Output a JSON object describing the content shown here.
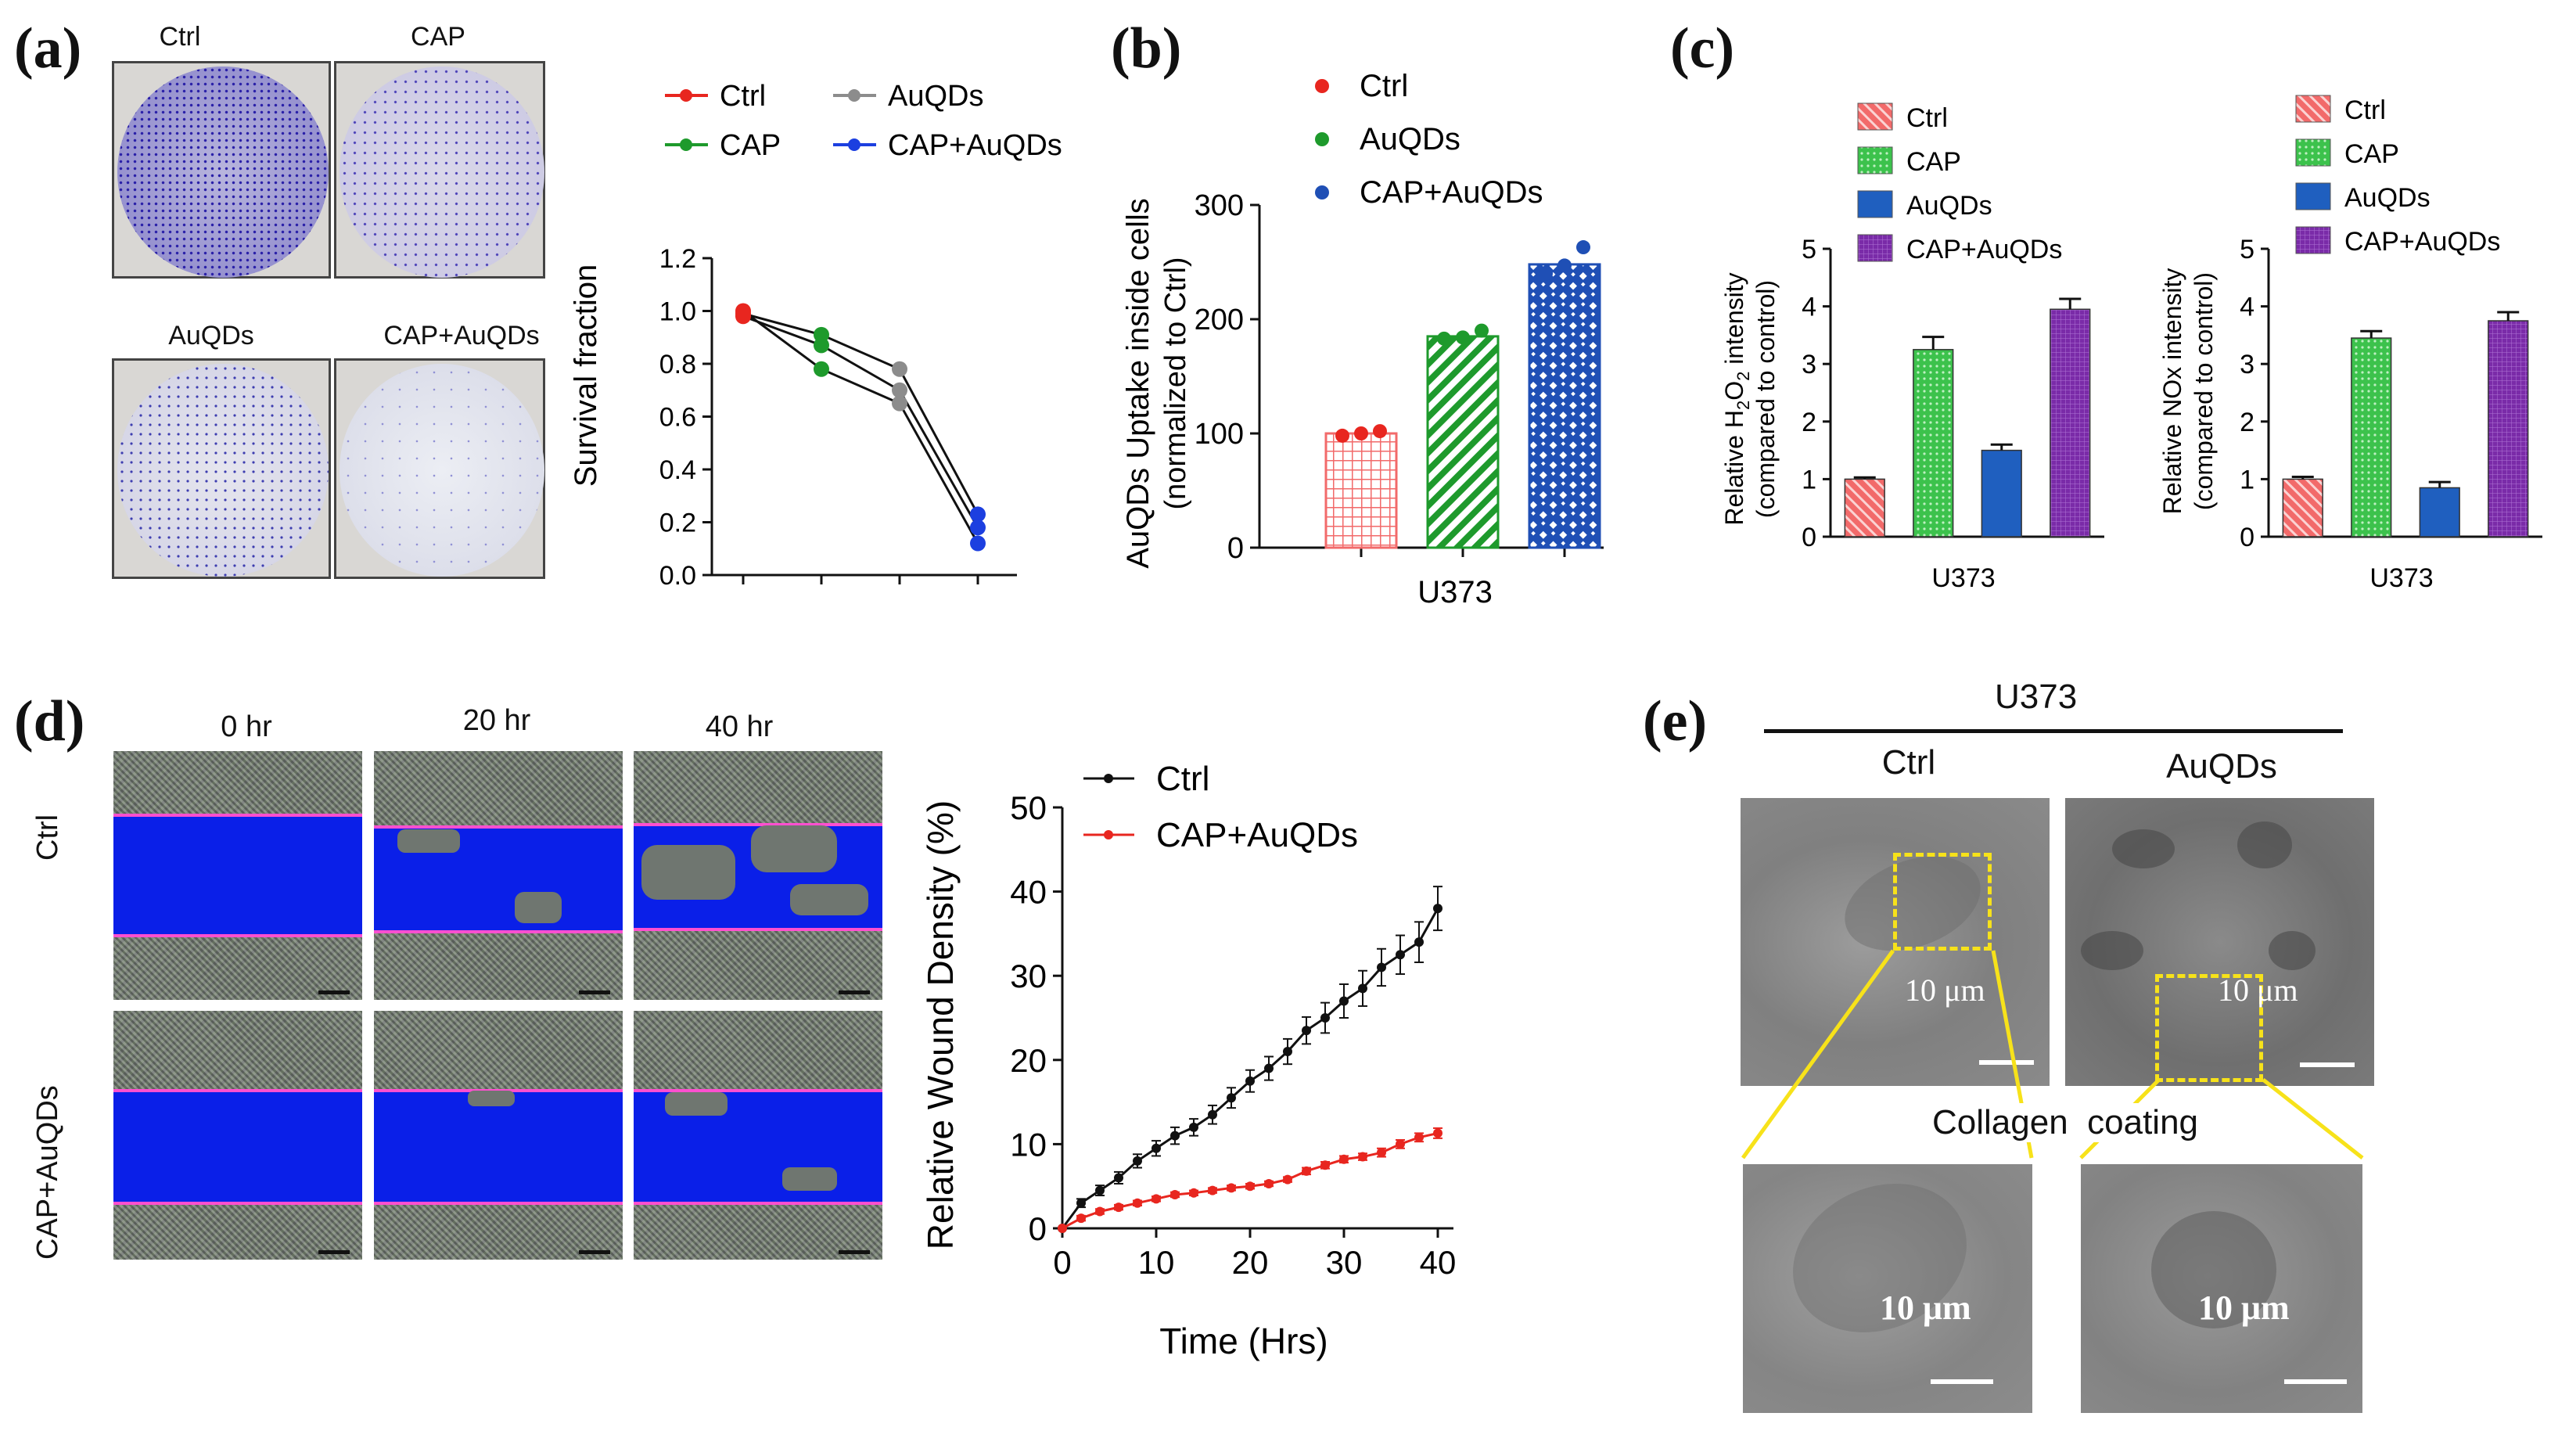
{
  "panels": {
    "a": "(a)",
    "b": "(b)",
    "c": "(c)",
    "d": "(d)",
    "e": "(e)"
  },
  "panel_a": {
    "dish_labels": [
      "Ctrl",
      "CAP",
      "AuQDs",
      "CAP+AuQDs"
    ],
    "legend": [
      "Ctrl",
      "AuQDs",
      "CAP",
      "CAP+AuQDs"
    ]
  },
  "panel_d": {
    "time_labels": [
      "0 hr",
      "20 hr",
      "40 hr"
    ],
    "row_labels": [
      "Ctrl",
      "CAP+AuQDs"
    ]
  },
  "panel_e": {
    "cell_line": "U373",
    "col_labels": [
      "Ctrl",
      "AuQDs"
    ],
    "coating": "Collagen  coating",
    "scale_label": "10 μm"
  },
  "colors": {
    "ctrl": "#e8261f",
    "cap": "#1e9a2c",
    "auqds": "#8c8c8c",
    "cap_auqds": "#1c3fe0",
    "bar_ctrl": "#f26a6a",
    "bar_cap": "#2aa63a",
    "bar_auqds": "#1f5fbf",
    "bar_cap_auqds": "#7a2ba8",
    "wound_blue": "#0a1fe8",
    "magenta": "#ff4fd0"
  },
  "chart_data": [
    {
      "id": "a",
      "type": "line",
      "title": "",
      "xlabel": "",
      "ylabel": "Survival fraction",
      "ylim": [
        0,
        1.2
      ],
      "yticks": [
        "0.0",
        "0.2",
        "0.4",
        "0.6",
        "0.8",
        "1.0",
        "1.2"
      ],
      "groups": [
        "Ctrl",
        "CAP",
        "AuQDs",
        "CAP+AuQDs"
      ],
      "replicates": [
        [
          0.99,
          0.91,
          0.78,
          0.23
        ],
        [
          0.98,
          0.87,
          0.7,
          0.18
        ],
        [
          1.0,
          0.78,
          0.65,
          0.12
        ]
      ],
      "legend": [
        "Ctrl",
        "AuQDs",
        "CAP",
        "CAP+AuQDs"
      ]
    },
    {
      "id": "b",
      "type": "bar",
      "xlabel": "U373",
      "ylabel": "AuQDs Uptake inside cells",
      "ylabel2": "(normalized to Ctrl)",
      "ylim": [
        0,
        300
      ],
      "yticks": [
        "0",
        "100",
        "200",
        "300"
      ],
      "categories": [
        "Ctrl",
        "AuQDs",
        "CAP+AuQDs"
      ],
      "values": [
        100,
        185,
        248
      ],
      "points": [
        [
          98,
          100,
          102
        ],
        [
          183,
          184,
          190
        ],
        [
          240,
          247,
          263
        ]
      ],
      "legend": [
        "Ctrl",
        "AuQDs",
        "CAP+AuQDs"
      ]
    },
    {
      "id": "c1",
      "type": "bar",
      "xlabel": "U373",
      "ylabel": "Relative H",
      "ylabel_sub": "2",
      "ylabel_mid": "O",
      "ylabel_sub2": "2",
      "ylabel_tail": " intensity",
      "ylabel2": "(compared to control)",
      "ylim": [
        0,
        5
      ],
      "yticks": [
        "0",
        "1",
        "2",
        "3",
        "4",
        "5"
      ],
      "categories": [
        "Ctrl",
        "CAP",
        "AuQDs",
        "CAP+AuQDs"
      ],
      "values": [
        1.0,
        3.25,
        1.5,
        3.95
      ],
      "errors": [
        0.03,
        0.22,
        0.1,
        0.18
      ],
      "legend": [
        "Ctrl",
        "CAP",
        "AuQDs",
        "CAP+AuQDs"
      ]
    },
    {
      "id": "c2",
      "type": "bar",
      "xlabel": "U373",
      "ylabel": "Relative NOx intensity",
      "ylabel2": "(compared to control)",
      "ylim": [
        0,
        5
      ],
      "yticks": [
        "0",
        "1",
        "2",
        "3",
        "4",
        "5"
      ],
      "categories": [
        "Ctrl",
        "CAP",
        "AuQDs",
        "CAP+AuQDs"
      ],
      "values": [
        1.0,
        3.45,
        0.85,
        3.75
      ],
      "errors": [
        0.04,
        0.12,
        0.1,
        0.15
      ],
      "legend": [
        "Ctrl",
        "CAP",
        "AuQDs",
        "CAP+AuQDs"
      ]
    },
    {
      "id": "d",
      "type": "line",
      "xlabel": "Time (Hrs)",
      "ylabel": "Relative Wound Density (%)",
      "xlim": [
        0,
        40
      ],
      "ylim": [
        0,
        50
      ],
      "xticks": [
        "0",
        "10",
        "20",
        "30",
        "40"
      ],
      "yticks": [
        "0",
        "10",
        "20",
        "30",
        "40",
        "50"
      ],
      "x": [
        0,
        2,
        4,
        6,
        8,
        10,
        12,
        14,
        16,
        18,
        20,
        22,
        24,
        26,
        28,
        30,
        32,
        34,
        36,
        38,
        40
      ],
      "series": [
        {
          "name": "Ctrl",
          "values": [
            0,
            3,
            4.5,
            6,
            8,
            9.5,
            11,
            12,
            13.5,
            15.5,
            17.5,
            19,
            21,
            23.5,
            25,
            27,
            28.5,
            31,
            32.5,
            34,
            38
          ],
          "errors": [
            0,
            0.5,
            0.6,
            0.7,
            0.8,
            0.9,
            1.0,
            1.0,
            1.1,
            1.2,
            1.3,
            1.4,
            1.5,
            1.6,
            1.8,
            2.0,
            2.1,
            2.2,
            2.3,
            2.4,
            2.6
          ]
        },
        {
          "name": "CAP+AuQDs",
          "values": [
            0,
            1.2,
            2,
            2.5,
            3,
            3.5,
            4,
            4.2,
            4.5,
            4.8,
            5,
            5.3,
            5.8,
            6.8,
            7.5,
            8.2,
            8.5,
            9,
            10,
            10.8,
            11.3
          ],
          "errors": [
            0,
            0.3,
            0.3,
            0.3,
            0.3,
            0.3,
            0.3,
            0.3,
            0.3,
            0.3,
            0.3,
            0.3,
            0.3,
            0.4,
            0.4,
            0.4,
            0.4,
            0.5,
            0.5,
            0.5,
            0.6
          ]
        }
      ]
    }
  ]
}
